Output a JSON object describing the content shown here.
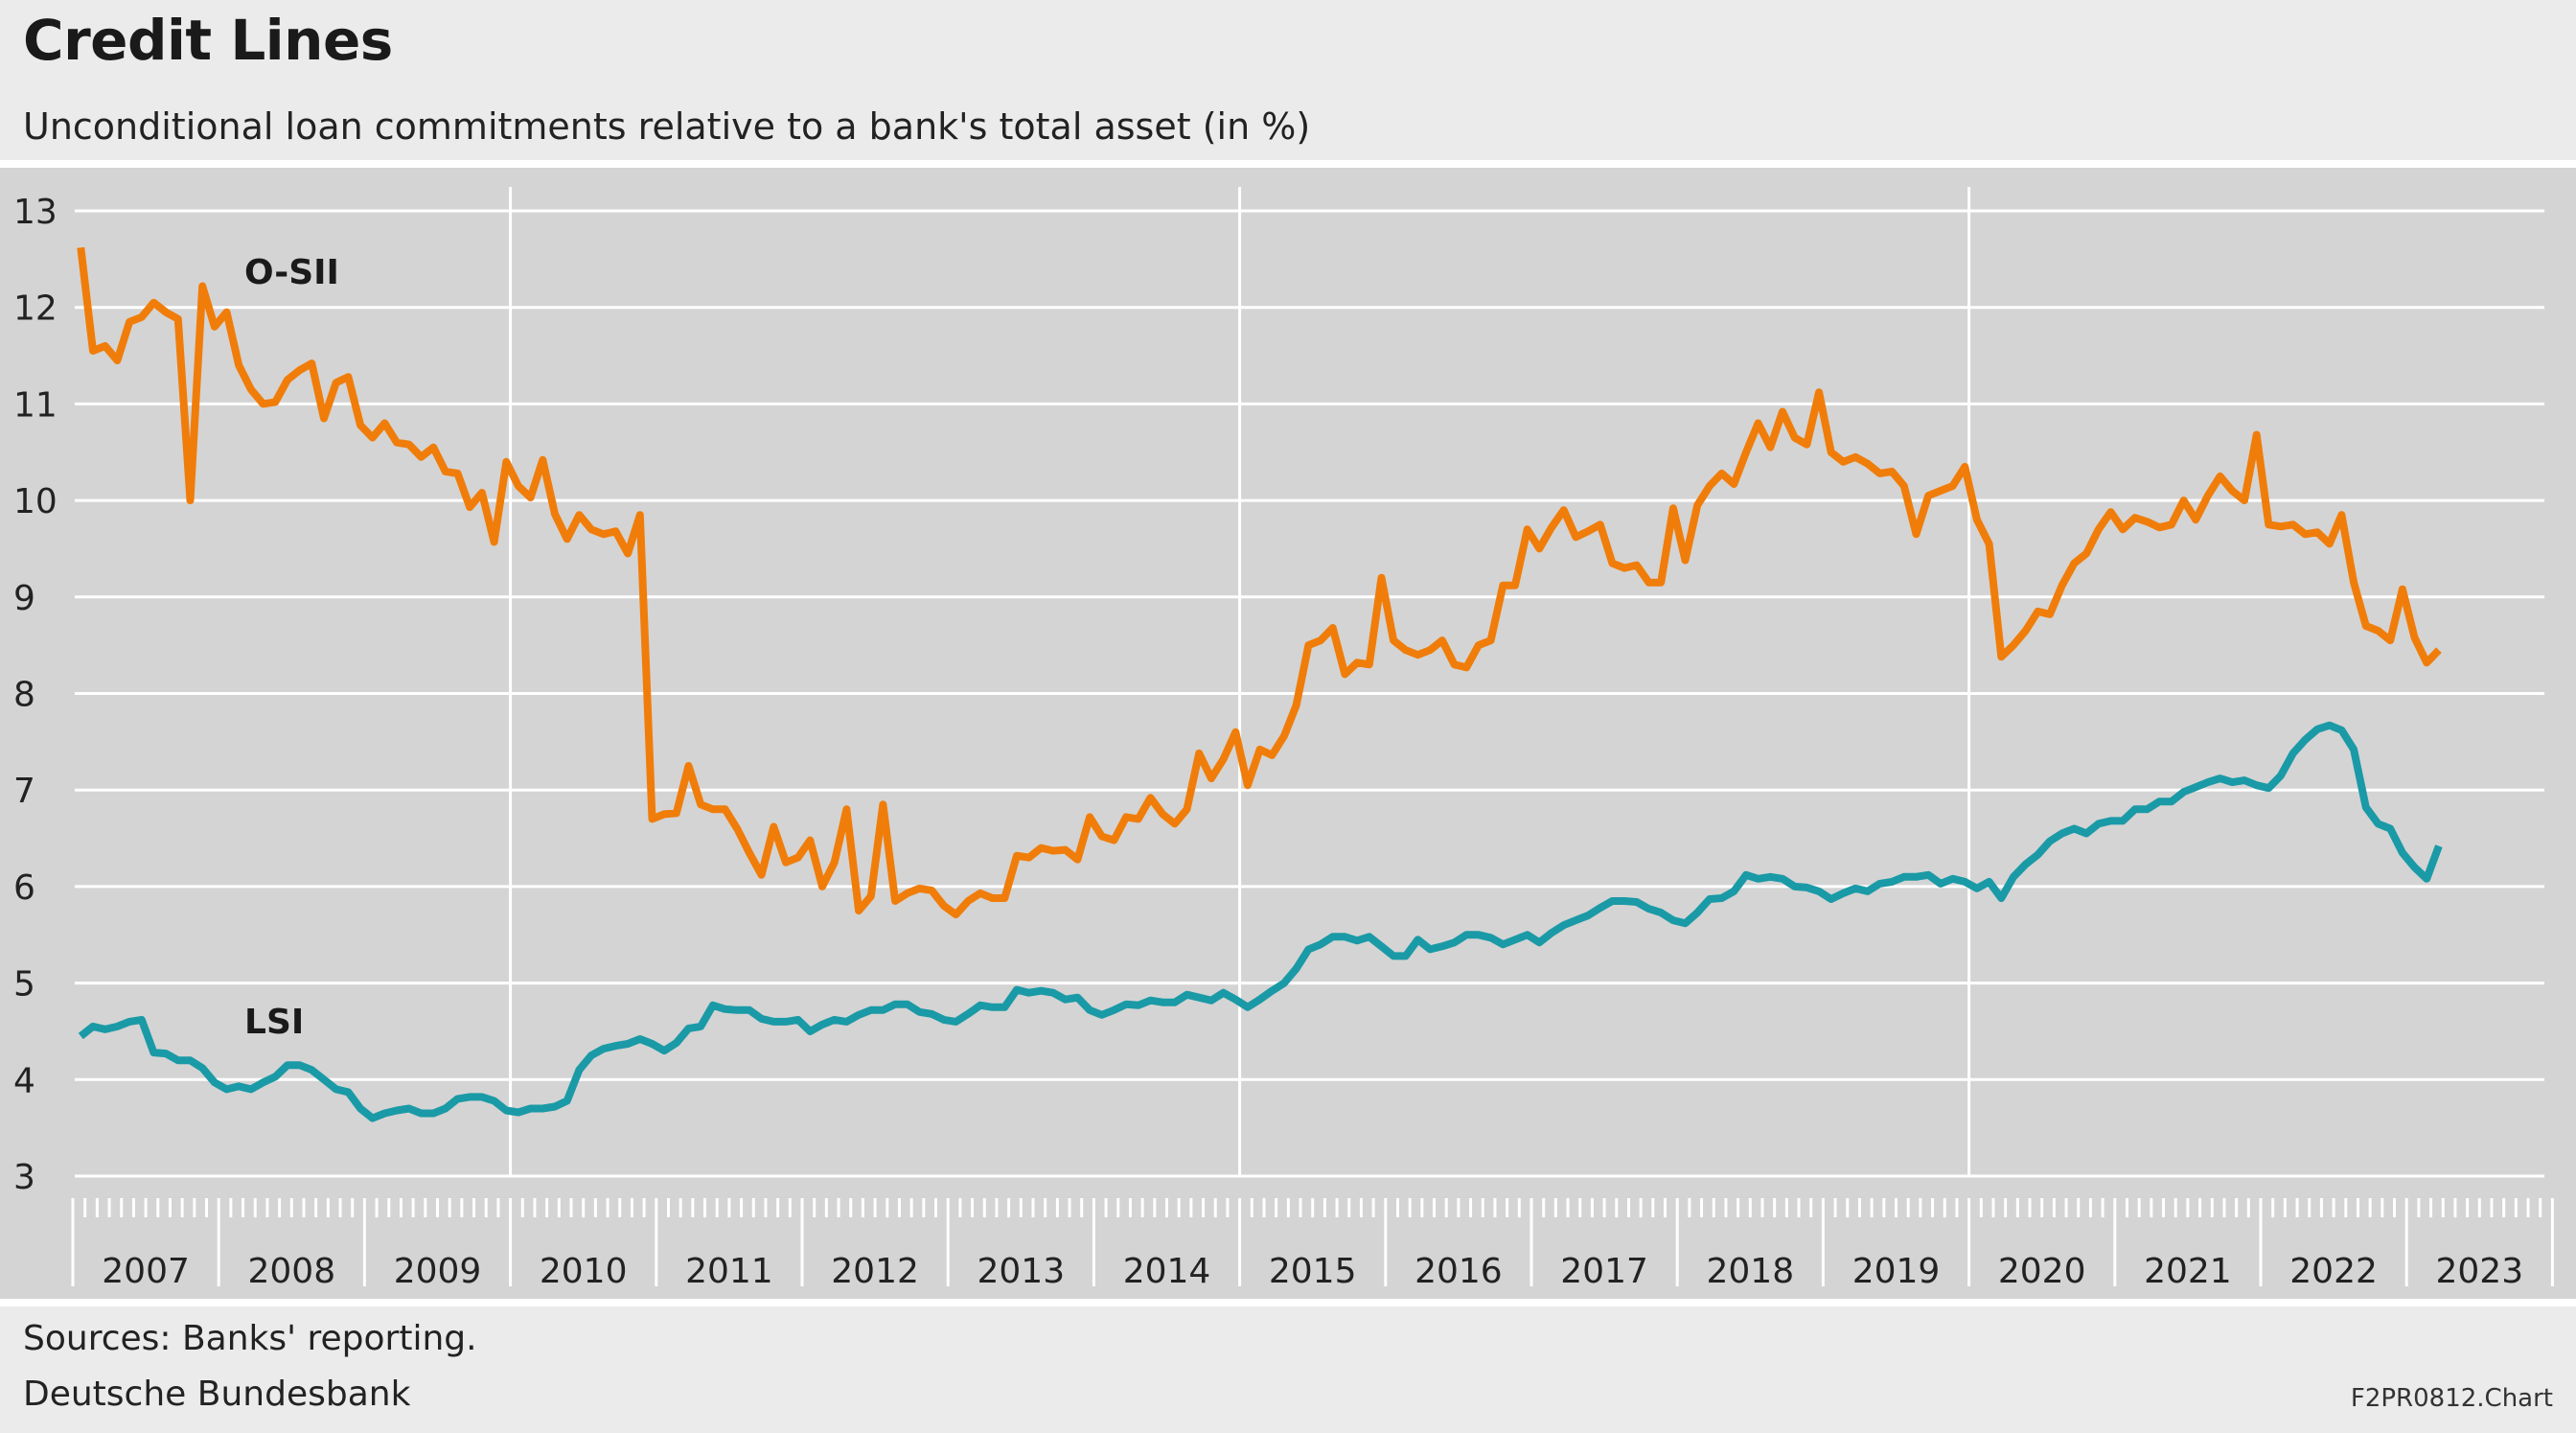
{
  "title": "Credit Lines",
  "subtitle": "Unconditional loan commitments relative to a bank's total asset (in %)",
  "footer": {
    "sources": "Sources: Banks' reporting.",
    "org": "Deutsche Bundesbank",
    "code": "F2PR0812.Chart"
  },
  "colors": {
    "osii": "#f07d0a",
    "lsi": "#1a9aa6",
    "plot_bg": "#d4d4d4",
    "grid": "#ffffff"
  },
  "chart_data": {
    "type": "line",
    "title": "Credit Lines",
    "subtitle": "Unconditional loan commitments relative to a bank's total asset (in %)",
    "ylim": [
      3,
      13
    ],
    "yticks": [
      3,
      4,
      5,
      6,
      7,
      8,
      9,
      10,
      11,
      12,
      13
    ],
    "year_labels": [
      "2007",
      "2008",
      "2009",
      "2010",
      "2011",
      "2012",
      "2013",
      "2014",
      "2015",
      "2016",
      "2017",
      "2018",
      "2019",
      "2020",
      "2021",
      "2022",
      "2023"
    ],
    "x_start": "2007-01",
    "frequency": "monthly",
    "grid": "horizontal; vertical at 2010, 2015, 2020",
    "series": [
      {
        "name": "O-SII",
        "values": [
          12.62,
          11.55,
          11.6,
          11.45,
          11.85,
          11.9,
          12.05,
          11.95,
          11.88,
          10.0,
          12.22,
          11.8,
          11.95,
          11.4,
          11.15,
          11.0,
          11.02,
          11.25,
          11.35,
          11.42,
          10.85,
          11.22,
          11.28,
          10.78,
          10.65,
          10.8,
          10.6,
          10.58,
          10.45,
          10.55,
          10.3,
          10.28,
          9.93,
          10.08,
          9.57,
          10.4,
          10.15,
          10.03,
          10.42,
          9.86,
          9.6,
          9.85,
          9.7,
          9.65,
          9.68,
          9.45,
          9.85,
          6.7,
          6.75,
          6.76,
          7.25,
          6.85,
          6.8,
          6.8,
          6.6,
          6.35,
          6.12,
          6.62,
          6.25,
          6.3,
          6.48,
          6.0,
          6.25,
          6.8,
          5.75,
          5.9,
          6.85,
          5.85,
          5.93,
          5.98,
          5.96,
          5.8,
          5.71,
          5.85,
          5.93,
          5.88,
          5.88,
          6.32,
          6.3,
          6.4,
          6.37,
          6.38,
          6.28,
          6.72,
          6.52,
          6.48,
          6.72,
          6.7,
          6.92,
          6.75,
          6.65,
          6.8,
          7.38,
          7.12,
          7.32,
          7.6,
          7.05,
          7.42,
          7.36,
          7.56,
          7.88,
          8.5,
          8.55,
          8.68,
          8.2,
          8.32,
          8.3,
          9.2,
          8.55,
          8.45,
          8.4,
          8.45,
          8.55,
          8.3,
          8.27,
          8.5,
          8.55,
          9.12,
          9.12,
          9.7,
          9.5,
          9.72,
          9.9,
          9.62,
          9.68,
          9.75,
          9.35,
          9.3,
          9.33,
          9.15,
          9.15,
          9.92,
          9.38,
          9.95,
          10.15,
          10.28,
          10.17,
          10.5,
          10.8,
          10.55,
          10.92,
          10.65,
          10.58,
          11.12,
          10.5,
          10.4,
          10.45,
          10.38,
          10.28,
          10.3,
          10.15,
          9.65,
          10.05,
          10.1,
          10.15,
          10.35,
          9.8,
          9.55,
          8.38,
          8.5,
          8.65,
          8.85,
          8.82,
          9.12,
          9.35,
          9.45,
          9.7,
          9.88,
          9.7,
          9.82,
          9.78,
          9.72,
          9.75,
          10.0,
          9.8,
          10.05,
          10.25,
          10.1,
          10.0,
          10.68,
          9.75,
          9.73,
          9.75,
          9.65,
          9.67,
          9.55,
          9.85,
          9.15,
          8.7,
          8.65,
          8.55,
          9.08,
          8.58,
          8.32,
          8.45
        ]
      },
      {
        "name": "LSI",
        "values": [
          4.45,
          4.55,
          4.52,
          4.55,
          4.6,
          4.62,
          4.28,
          4.27,
          4.2,
          4.2,
          4.12,
          3.97,
          3.9,
          3.93,
          3.9,
          3.97,
          4.03,
          4.15,
          4.15,
          4.1,
          4.0,
          3.9,
          3.87,
          3.7,
          3.6,
          3.65,
          3.68,
          3.7,
          3.65,
          3.65,
          3.7,
          3.8,
          3.82,
          3.82,
          3.78,
          3.68,
          3.66,
          3.7,
          3.7,
          3.72,
          3.78,
          4.1,
          4.25,
          4.32,
          4.35,
          4.37,
          4.42,
          4.37,
          4.3,
          4.38,
          4.53,
          4.55,
          4.77,
          4.73,
          4.72,
          4.72,
          4.63,
          4.6,
          4.6,
          4.62,
          4.5,
          4.57,
          4.62,
          4.6,
          4.67,
          4.72,
          4.72,
          4.78,
          4.78,
          4.7,
          4.68,
          4.62,
          4.6,
          4.68,
          4.77,
          4.75,
          4.75,
          4.93,
          4.9,
          4.92,
          4.9,
          4.83,
          4.85,
          4.72,
          4.67,
          4.72,
          4.78,
          4.77,
          4.82,
          4.8,
          4.8,
          4.88,
          4.85,
          4.82,
          4.9,
          4.83,
          4.75,
          4.83,
          4.92,
          5.0,
          5.15,
          5.35,
          5.4,
          5.48,
          5.48,
          5.44,
          5.48,
          5.38,
          5.28,
          5.28,
          5.45,
          5.35,
          5.38,
          5.42,
          5.5,
          5.5,
          5.47,
          5.4,
          5.45,
          5.5,
          5.42,
          5.52,
          5.6,
          5.65,
          5.7,
          5.78,
          5.85,
          5.85,
          5.84,
          5.77,
          5.73,
          5.65,
          5.62,
          5.73,
          5.87,
          5.88,
          5.95,
          6.12,
          6.08,
          6.1,
          6.08,
          6.0,
          5.99,
          5.95,
          5.87,
          5.93,
          5.98,
          5.95,
          6.03,
          6.05,
          6.1,
          6.1,
          6.12,
          6.03,
          6.08,
          6.05,
          5.98,
          6.05,
          5.88,
          6.1,
          6.23,
          6.33,
          6.47,
          6.55,
          6.6,
          6.55,
          6.65,
          6.68,
          6.68,
          6.8,
          6.8,
          6.88,
          6.88,
          6.98,
          7.03,
          7.08,
          7.12,
          7.08,
          7.1,
          7.05,
          7.02,
          7.15,
          7.38,
          7.52,
          7.63,
          7.67,
          7.62,
          7.42,
          6.82,
          6.65,
          6.6,
          6.35,
          6.2,
          6.08,
          6.42
        ]
      }
    ],
    "annotations": [
      "O-SII",
      "LSI"
    ]
  }
}
